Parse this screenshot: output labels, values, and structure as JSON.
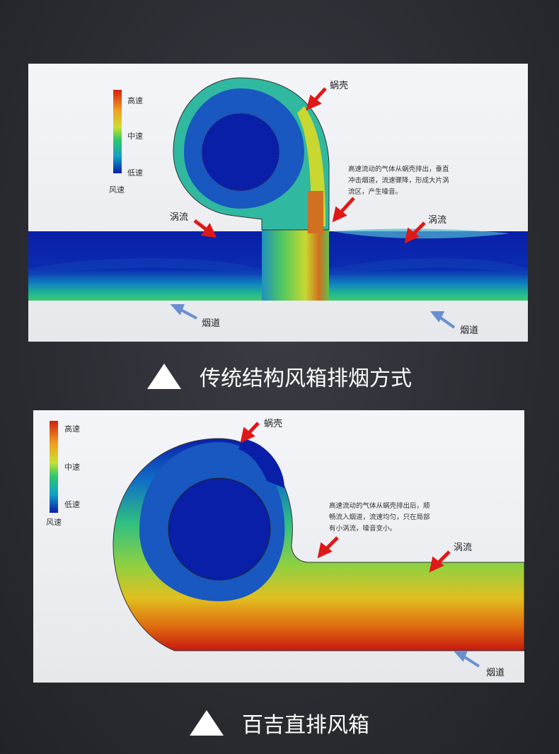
{
  "diagram1": {
    "legend": {
      "high": "高速",
      "mid": "中速",
      "low": "低速",
      "title": "风速"
    },
    "labels": {
      "volute": "蜗壳",
      "eddy_left": "涡流",
      "eddy_right": "涡流",
      "flue_left": "烟道",
      "flue_right": "烟道"
    },
    "note": "高速流动的气体从蜗壳排出，垂直冲击烟道，流速骤降，形成大片涡流区，产生噪音。",
    "caption": "传统结构风箱排烟方式"
  },
  "diagram2": {
    "legend": {
      "high": "高速",
      "mid": "中速",
      "low": "低速",
      "title": "风速"
    },
    "labels": {
      "volute": "蜗壳",
      "eddy": "涡流",
      "flue": "烟道"
    },
    "note": "高速流动的气体从蜗壳排出后，顺畅流入烟道，流速均匀，只在局部有小涡流，噪音变小。",
    "caption": "百吉直排风箱"
  },
  "colors": {
    "background": "#2b2d33",
    "low": "#0a1fa8",
    "mid": "#2ec86a",
    "high": "#d42010",
    "arrow_red": "#e01818",
    "arrow_blue": "#6a8fd0"
  }
}
